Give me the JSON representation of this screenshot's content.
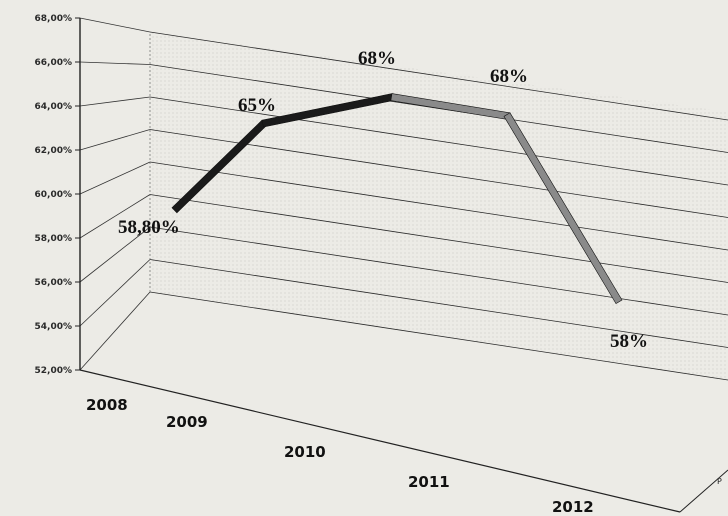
{
  "chart_data": {
    "type": "line",
    "title": "",
    "xlabel": "",
    "ylabel": "",
    "categories": [
      "2008",
      "2009",
      "2010",
      "2011",
      "2012"
    ],
    "series": [
      {
        "values": [
          58.8,
          65,
          68,
          68,
          58
        ]
      }
    ],
    "data_labels": [
      "58,80%",
      "65%",
      "68%",
      "68%",
      "58%"
    ],
    "y_ticks": [
      "52,00%",
      "54,00%",
      "56,00%",
      "58,00%",
      "60,00%",
      "62,00%",
      "64,00%",
      "66,00%",
      "68,00%"
    ],
    "ylim": [
      52,
      68
    ],
    "grid": true,
    "three_d": true,
    "legend": "none",
    "corner_text": "P",
    "colors": {
      "line_dark": "#1a1a1a",
      "line_light": "#8a8a8a",
      "grid": "#2a2a2a",
      "background": "#ecebe6"
    }
  }
}
